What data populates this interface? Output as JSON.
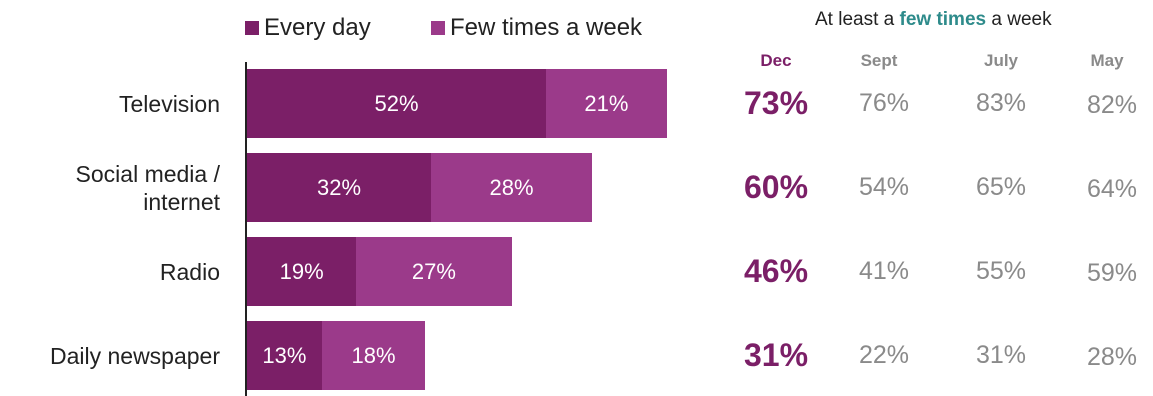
{
  "legend": {
    "every_day": "Every day",
    "few_times": "Few times a week"
  },
  "colors": {
    "every_day": "#7b1f67",
    "few_times": "#9b3a8a",
    "dec_text": "#7b1f67",
    "other_month_text": "#8a8a8a",
    "highlight_text": "#2e8b8b"
  },
  "table": {
    "title_prefix": "At least a ",
    "title_highlight": "few times",
    "title_suffix": " a week",
    "columns": [
      "Dec",
      "Sept",
      "July",
      "May"
    ]
  },
  "chart_data": {
    "type": "bar",
    "orientation": "horizontal",
    "stacked": true,
    "categories": [
      "Television",
      "Social media / internet",
      "Radio",
      "Daily newspaper"
    ],
    "category_lines": [
      [
        "Television"
      ],
      [
        "Social media /",
        "internet"
      ],
      [
        "Radio"
      ],
      [
        "Daily newspaper"
      ]
    ],
    "series": [
      {
        "name": "Every day",
        "values": [
          52,
          32,
          19,
          13
        ],
        "labels": [
          "52%",
          "32%",
          "19%",
          "13%"
        ]
      },
      {
        "name": "Few times a week",
        "values": [
          21,
          28,
          27,
          18
        ],
        "labels": [
          "21%",
          "28%",
          "27%",
          "18%"
        ]
      }
    ],
    "xlim": [
      0,
      100
    ],
    "grid": false,
    "legend_position": "top",
    "at_least_few_times_a_week": [
      {
        "Dec": "73%",
        "Sept": "76%",
        "July": "83%",
        "May": "82%"
      },
      {
        "Dec": "60%",
        "Sept": "54%",
        "July": "65%",
        "May": "64%"
      },
      {
        "Dec": "46%",
        "Sept": "41%",
        "July": "55%",
        "May": "59%"
      },
      {
        "Dec": "31%",
        "Sept": "22%",
        "July": "31%",
        "May": "28%"
      }
    ]
  }
}
